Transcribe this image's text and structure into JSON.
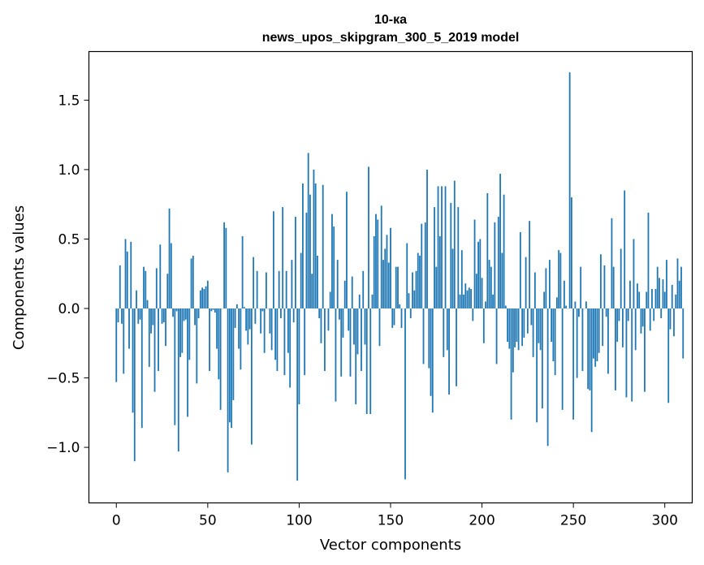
{
  "chart_data": {
    "type": "bar",
    "title_line1": "10-ка",
    "title_line2": "news_upos_skipgram_300_5_2019 model",
    "xlabel": "Vector components",
    "ylabel": "Components values",
    "xlim": [
      -15,
      315
    ],
    "ylim": [
      -1.4,
      1.85
    ],
    "xticks": [
      0,
      50,
      100,
      150,
      200,
      250,
      300
    ],
    "xtick_labels": [
      "0",
      "50",
      "100",
      "150",
      "200",
      "250",
      "300"
    ],
    "yticks": [
      -1.0,
      -0.5,
      0.0,
      0.5,
      1.0,
      1.5
    ],
    "ytick_labels": [
      "−1.0",
      "−0.5",
      "0.0",
      "0.5",
      "1.0",
      "1.5"
    ],
    "bar_color": "#1f77b4",
    "grid": false,
    "values": [
      -0.53,
      -0.1,
      0.31,
      -0.11,
      -0.47,
      0.5,
      0.41,
      -0.29,
      0.48,
      -0.75,
      -1.1,
      0.13,
      -0.11,
      -0.08,
      -0.86,
      0.3,
      0.27,
      0.06,
      -0.42,
      -0.18,
      -0.12,
      -0.6,
      0.29,
      -0.45,
      0.46,
      -0.11,
      -0.1,
      -0.27,
      0.25,
      0.72,
      0.47,
      -0.06,
      -0.84,
      -0.02,
      -1.03,
      -0.35,
      -0.32,
      -0.09,
      -0.08,
      -0.78,
      -0.37,
      0.36,
      0.38,
      -0.12,
      -0.54,
      -0.07,
      0.13,
      0.15,
      0.14,
      0.16,
      0.2,
      -0.45,
      -0.02,
      -0.01,
      -0.03,
      -0.29,
      -0.51,
      -0.73,
      0.0,
      0.62,
      0.58,
      -1.18,
      -0.82,
      -0.86,
      -0.66,
      -0.14,
      0.03,
      -0.29,
      -0.44,
      0.52,
      0.01,
      -0.16,
      -0.26,
      -0.15,
      -0.98,
      0.37,
      -0.11,
      0.27,
      0.0,
      -0.18,
      -0.02,
      -0.32,
      0.26,
      0.0,
      -0.18,
      -0.3,
      0.7,
      -0.37,
      -0.45,
      0.27,
      -0.07,
      0.73,
      -0.48,
      0.27,
      -0.32,
      -0.57,
      0.35,
      -0.1,
      0.66,
      -1.24,
      -0.69,
      0.4,
      0.9,
      -0.48,
      0.69,
      1.12,
      0.82,
      0.25,
      1.0,
      0.9,
      0.38,
      -0.07,
      -0.25,
      0.89,
      -0.45,
      0.0,
      -0.16,
      0.12,
      0.68,
      0.59,
      -0.67,
      0.35,
      -0.08,
      -0.49,
      -0.21,
      0.2,
      0.84,
      -0.16,
      -0.49,
      0.23,
      -0.26,
      -0.69,
      -0.33,
      0.1,
      -0.45,
      0.27,
      -0.26,
      -0.76,
      1.02,
      -0.76,
      0.1,
      0.52,
      0.68,
      0.64,
      -0.27,
      0.74,
      0.35,
      0.43,
      0.53,
      0.33,
      0.58,
      -0.14,
      -0.12,
      0.3,
      0.3,
      0.03,
      -0.14,
      0.0,
      -1.23,
      0.47,
      0.11,
      -0.07,
      0.26,
      0.13,
      0.27,
      0.4,
      0.38,
      0.61,
      -0.4,
      0.62,
      1.0,
      -0.43,
      -0.63,
      -0.75,
      0.73,
      0.3,
      0.88,
      0.52,
      0.88,
      -0.35,
      0.88,
      -0.3,
      -0.62,
      0.76,
      0.43,
      0.92,
      -0.56,
      0.73,
      0.1,
      0.42,
      0.1,
      0.18,
      0.13,
      0.15,
      0.14,
      -0.09,
      0.64,
      0.25,
      0.48,
      0.5,
      0.22,
      -0.25,
      0.05,
      0.83,
      0.35,
      0.3,
      0.1,
      0.62,
      -0.4,
      0.66,
      0.97,
      0.4,
      0.82,
      0.02,
      -0.24,
      -0.29,
      -0.8,
      -0.46,
      -0.28,
      -0.24,
      -0.3,
      0.55,
      -0.27,
      -0.21,
      0.37,
      -0.18,
      0.63,
      -0.12,
      -0.35,
      0.26,
      -0.82,
      -0.25,
      -0.3,
      -0.72,
      0.12,
      0.29,
      -0.99,
      0.35,
      -0.24,
      -0.38,
      -0.48,
      0.08,
      0.42,
      0.4,
      -0.73,
      0.2,
      0.02,
      0.0,
      1.7,
      0.8,
      -0.8,
      0.05,
      -0.5,
      -0.06,
      0.3,
      -0.45,
      0.0,
      0.05,
      -0.58,
      -0.59,
      -0.89,
      -0.36,
      -0.42,
      -0.38,
      -0.32,
      0.39,
      -0.27,
      0.31,
      -0.06,
      -0.47,
      0.0,
      0.65,
      0.3,
      -0.59,
      -0.24,
      -0.09,
      0.43,
      -0.28,
      0.85,
      -0.64,
      -0.09,
      0.2,
      -0.67,
      0.5,
      -0.3,
      0.18,
      0.12,
      -0.18,
      -0.13,
      -0.6,
      0.12,
      0.69,
      -0.16,
      0.14,
      -0.09,
      0.14,
      0.3,
      0.22,
      -0.07,
      0.21,
      0.12,
      0.35,
      -0.68,
      -0.15,
      0.17,
      -0.2,
      0.1,
      0.36,
      0.2,
      0.3,
      -0.36
    ]
  }
}
